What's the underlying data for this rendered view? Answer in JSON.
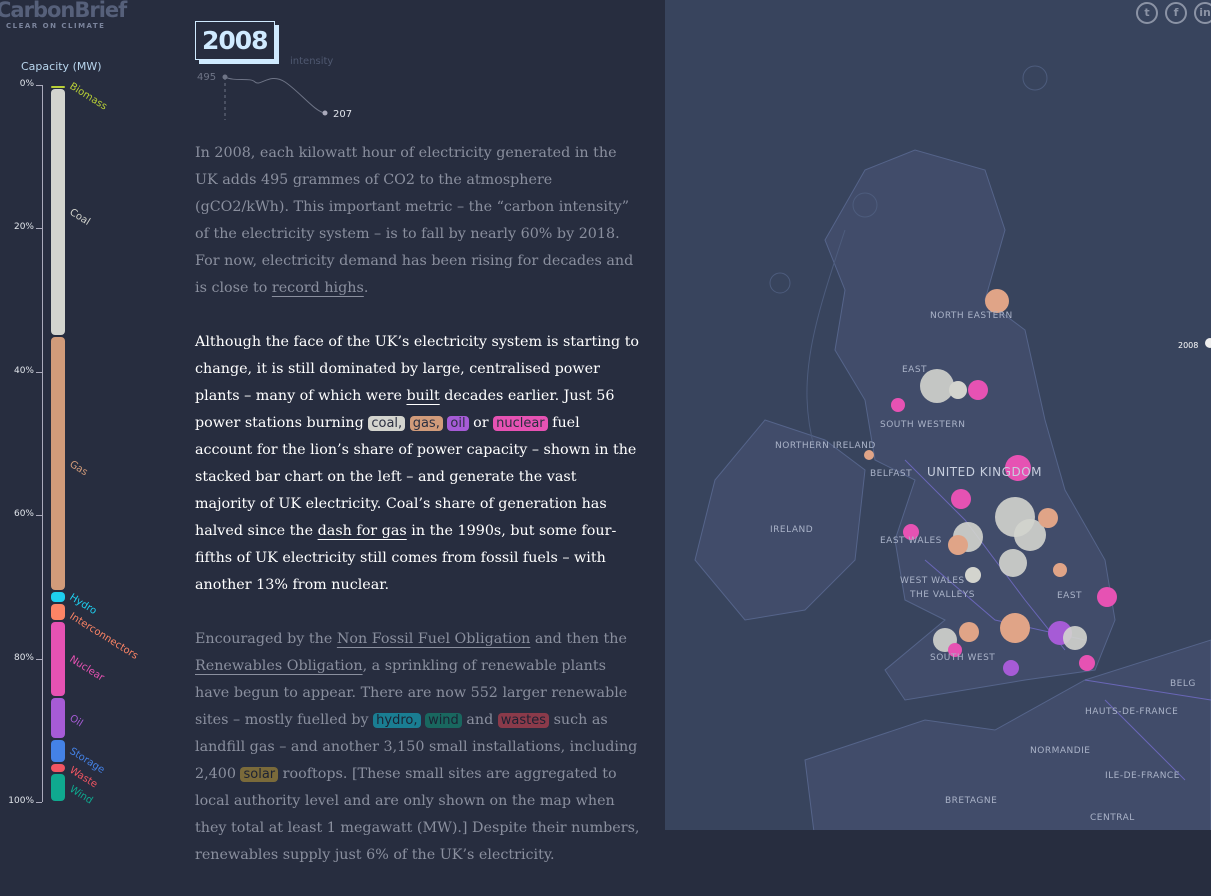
{
  "logo": {
    "name": "CarbonBrief",
    "tagline": "CLEAR ON CLIMATE"
  },
  "capacity": {
    "title": "Capacity (MW)",
    "ticks": [
      "0%",
      "20%",
      "40%",
      "60%",
      "80%",
      "100%"
    ],
    "segments": [
      {
        "name": "Biomass",
        "pct": 0.4,
        "color": "#b8cf36"
      },
      {
        "name": "Coal",
        "pct": 34.6,
        "color": "#d3d4ce"
      },
      {
        "name": "Gas",
        "pct": 35.6,
        "color": "#d19b7a"
      },
      {
        "name": "Hydro",
        "pct": 1.7,
        "color": "#1ecfef"
      },
      {
        "name": "Interconnectors",
        "pct": 2.4,
        "color": "#fc8465"
      },
      {
        "name": "Nuclear",
        "pct": 10.6,
        "color": "#e652b3"
      },
      {
        "name": "Oil",
        "pct": 5.9,
        "color": "#a65bd6"
      },
      {
        "name": "Storage",
        "pct": 3.3,
        "color": "#4482e6"
      },
      {
        "name": "Waste",
        "pct": 1.4,
        "color": "#f25562"
      },
      {
        "name": "Wind",
        "pct": 4.1,
        "color": "#0fa98f"
      }
    ]
  },
  "year": "2008",
  "intensity": {
    "label": "intensity",
    "start": "495",
    "end": "207"
  },
  "paragraphs": [
    {
      "style": "dim",
      "segments": [
        {
          "t": "In 2008, each kilowatt hour of electricity generated in the UK adds 495 grammes of CO2 to the atmosphere (gCO2/kWh). This important metric – the “carbon intensity” of the electricity system – is to fall by nearly 60% by 2018. For now, electricity demand has been rising for decades and is close to "
        },
        {
          "t": "record highs",
          "link": true
        },
        {
          "t": "."
        }
      ]
    },
    {
      "style": "bright",
      "segments": [
        {
          "t": "Although the face of the UK’s electricity system is starting to change, it is still dominated by large, centralised power plants – many of which were "
        },
        {
          "t": "built",
          "link": true
        },
        {
          "t": " decades earlier. Just 56 power stations burning "
        },
        {
          "t": "coal,",
          "hl": "#d3d4ce"
        },
        {
          "t": " "
        },
        {
          "t": "gas,",
          "hl": "#d19b7a"
        },
        {
          "t": " "
        },
        {
          "t": "oil",
          "hl": "#a65bd6"
        },
        {
          "t": " or "
        },
        {
          "t": "nuclear",
          "hl": "#e652b3"
        },
        {
          "t": " fuel account for the lion’s share of power capacity – shown in the stacked bar chart on the left – and generate the vast majority of UK electricity. Coal’s share of generation has halved since the "
        },
        {
          "t": "dash for gas",
          "link": true
        },
        {
          "t": " in the 1990s, but some four-fifths of UK electricity still comes from fossil fuels – with another 13% from nuclear."
        }
      ]
    },
    {
      "style": "dim",
      "segments": [
        {
          "t": "Encouraged by the "
        },
        {
          "t": "Non Fossil Fuel Obligation",
          "link": true
        },
        {
          "t": " and then the "
        },
        {
          "t": "Renewables Obligation",
          "link": true
        },
        {
          "t": ", a sprinkling of renewable plants have begun to appear. There are now 552 larger renewable sites – mostly fuelled by "
        },
        {
          "t": "hydro,",
          "hl": "#1a7d92"
        },
        {
          "t": " "
        },
        {
          "t": "wind",
          "hl": "#19675f"
        },
        {
          "t": " and "
        },
        {
          "t": "wastes",
          "hl": "#8a3a4a"
        },
        {
          "t": " such as landfill gas – and another 3,150 small installations, including 2,400 "
        },
        {
          "t": "solar",
          "hl": "#7a6a3a"
        },
        {
          "t": " rooftops. [These small sites are aggregated to local authority level and are only shown on the map when they total at least 1 megawatt (MW).] Despite their numbers, renewables supply just 6% of the UK’s electricity."
        }
      ]
    }
  ],
  "map": {
    "labels": [
      "NORTH EASTERN",
      "EAST",
      "SOUTH WESTERN",
      "NORTHERN IRELAND",
      "BELFAST",
      "UNITED KINGDOM",
      "IRELAND",
      "EAST WALES",
      "WEST WALES",
      "THE VALLEYS",
      "EAST",
      "SOUTH WEST",
      "HAUTS-DE-FRANCE",
      "NORMANDIE",
      "ILE-DE-FRANCE",
      "BRETAGNE",
      "CENTRAL",
      "BELG"
    ],
    "timeline_year": "2008"
  },
  "social": [
    "twitter",
    "facebook",
    "linkedin"
  ]
}
